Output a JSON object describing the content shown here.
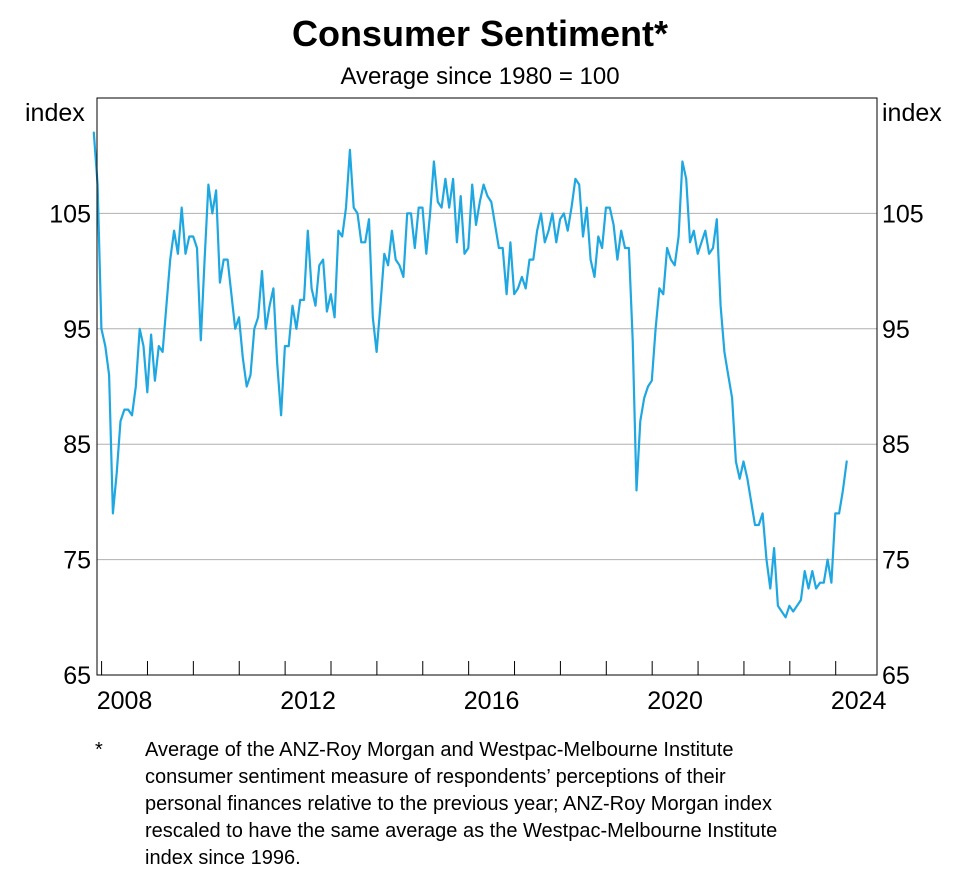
{
  "chart_data": {
    "type": "line",
    "title": "Consumer Sentiment*",
    "subtitle": "Average since 1980 = 100",
    "ylabel_left": "index",
    "ylabel_right": "index",
    "ylim": [
      65,
      115
    ],
    "yticks": [
      65,
      75,
      85,
      95,
      105
    ],
    "xlim": [
      2007.9,
      2024.9
    ],
    "xtick_labels": [
      {
        "year": 2008,
        "label": "2008"
      },
      {
        "year": 2012,
        "label": "2012"
      },
      {
        "year": 2016,
        "label": "2016"
      },
      {
        "year": 2020,
        "label": "2020"
      },
      {
        "year": 2024,
        "label": "2024"
      }
    ],
    "grid": true,
    "line_color": "#1ea7e1",
    "series": [
      {
        "name": "Consumer sentiment",
        "start_year": 2007.83,
        "step": 0.0833,
        "values": [
          112,
          107.5,
          95,
          93.5,
          91,
          79,
          82.5,
          87,
          88,
          88,
          87.5,
          90,
          95,
          93.5,
          89.5,
          94.5,
          90.5,
          93.5,
          93,
          97,
          101,
          103.5,
          101.5,
          105.5,
          101.5,
          103,
          103,
          102,
          94,
          101,
          107.5,
          105,
          107,
          99,
          101,
          101,
          98,
          95,
          96,
          92.5,
          90,
          91,
          95,
          96,
          100,
          95,
          97,
          98.5,
          92,
          87.5,
          93.5,
          93.5,
          97,
          95,
          97.5,
          97.5,
          103.5,
          98.5,
          97,
          100.5,
          101,
          96.5,
          98,
          96,
          103.5,
          103,
          105.5,
          110.5,
          105.5,
          105,
          102.5,
          102.5,
          104.5,
          96,
          93,
          97,
          101.5,
          100.5,
          103.5,
          101,
          100.5,
          99.5,
          105,
          105,
          102,
          105.5,
          105.5,
          101.5,
          105,
          109.5,
          106,
          105.5,
          108,
          105.5,
          108,
          102.5,
          106.5,
          101.5,
          102,
          107.5,
          104,
          106,
          107.5,
          106.5,
          106,
          104,
          102,
          102,
          98,
          102.5,
          98,
          98.5,
          99.5,
          98.5,
          101,
          101,
          103.5,
          105,
          102.5,
          103.5,
          105,
          102.5,
          104.5,
          105,
          103.5,
          105.5,
          108,
          107.5,
          103,
          105.5,
          101,
          99.5,
          103,
          102,
          105.5,
          105.5,
          104,
          101,
          103.5,
          102,
          102,
          94,
          81,
          87,
          89,
          90,
          90.5,
          95,
          98.5,
          98,
          102,
          101,
          100.5,
          103,
          109.5,
          108,
          102.5,
          103.5,
          101.5,
          102.5,
          103.5,
          101.5,
          102,
          104.5,
          97,
          93,
          91,
          89,
          83.5,
          82,
          83.5,
          82,
          80,
          78,
          78,
          79,
          75,
          72.5,
          76,
          71,
          70.5,
          70,
          71,
          70.5,
          71,
          71.5,
          74,
          72.5,
          74,
          72.5,
          73,
          73,
          75,
          73,
          79,
          79,
          81,
          83.5
        ]
      }
    ]
  },
  "footnote": {
    "marker": "*",
    "lines": [
      "Average of the ANZ-Roy Morgan and Westpac-Melbourne Institute",
      "consumer sentiment measure of respondents’ perceptions of their",
      "personal finances relative to the previous year; ANZ-Roy Morgan index",
      "rescaled to have the same average as the Westpac-Melbourne Institute",
      "index since 1996."
    ]
  }
}
